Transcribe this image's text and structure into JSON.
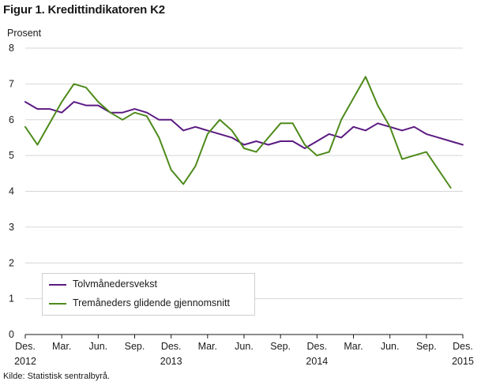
{
  "title": "Figur 1. Kredittindikatoren K2",
  "source": "Kilde: Statistisk sentralbyrå.",
  "chart_data": {
    "type": "line",
    "ylabel": "Prosent",
    "ylim": [
      0,
      8
    ],
    "yticks": [
      0,
      1,
      2,
      3,
      4,
      5,
      6,
      7,
      8
    ],
    "x_start": "2012-12",
    "x_end": "2015-12",
    "xtick_labels": [
      {
        "month": "Des.",
        "year": "2012"
      },
      {
        "month": "Mar.",
        "year": ""
      },
      {
        "month": "Jun.",
        "year": ""
      },
      {
        "month": "Sep.",
        "year": ""
      },
      {
        "month": "Des.",
        "year": "2013"
      },
      {
        "month": "Mar.",
        "year": ""
      },
      {
        "month": "Jun.",
        "year": ""
      },
      {
        "month": "Sep.",
        "year": ""
      },
      {
        "month": "Des.",
        "year": "2014"
      },
      {
        "month": "Mar.",
        "year": ""
      },
      {
        "month": "Jun.",
        "year": ""
      },
      {
        "month": "Sep.",
        "year": ""
      },
      {
        "month": "Des.",
        "year": "2015"
      }
    ],
    "grid": "horizontal",
    "legend_position": "bottom-left",
    "series": [
      {
        "name": "Tolvmånedersvekst",
        "color": "#5b1a82",
        "x": [
          "2012-12",
          "2013-01",
          "2013-02",
          "2013-03",
          "2013-04",
          "2013-05",
          "2013-06",
          "2013-07",
          "2013-08",
          "2013-09",
          "2013-10",
          "2013-11",
          "2013-12",
          "2014-01",
          "2014-02",
          "2014-03",
          "2014-04",
          "2014-05",
          "2014-06",
          "2014-07",
          "2014-08",
          "2014-09",
          "2014-10",
          "2014-11",
          "2014-12",
          "2015-01",
          "2015-02",
          "2015-03",
          "2015-04",
          "2015-05",
          "2015-06",
          "2015-07",
          "2015-08",
          "2015-09",
          "2015-10",
          "2015-11",
          "2015-12"
        ],
        "values": [
          6.5,
          6.3,
          6.3,
          6.2,
          6.5,
          6.4,
          6.4,
          6.2,
          6.2,
          6.3,
          6.2,
          6.0,
          6.0,
          5.7,
          5.8,
          5.7,
          5.6,
          5.5,
          5.3,
          5.4,
          5.3,
          5.4,
          5.4,
          5.2,
          5.4,
          5.6,
          5.5,
          5.8,
          5.7,
          5.9,
          5.8,
          5.7,
          5.8,
          5.6,
          5.5,
          5.4,
          5.3
        ]
      },
      {
        "name": "Tremåneders glidende gjennomsnitt",
        "color": "#4d8a1a",
        "x": [
          "2012-12",
          "2013-01",
          "2013-02",
          "2013-03",
          "2013-04",
          "2013-05",
          "2013-06",
          "2013-07",
          "2013-08",
          "2013-09",
          "2013-10",
          "2013-11",
          "2013-12",
          "2014-01",
          "2014-02",
          "2014-03",
          "2014-04",
          "2014-05",
          "2014-06",
          "2014-07",
          "2014-08",
          "2014-09",
          "2014-10",
          "2014-11",
          "2014-12",
          "2015-01",
          "2015-02",
          "2015-03",
          "2015-04",
          "2015-05",
          "2015-06",
          "2015-07",
          "2015-08",
          "2015-09",
          "2015-10",
          "2015-11"
        ],
        "values": [
          5.8,
          5.3,
          5.9,
          6.5,
          7.0,
          6.9,
          6.5,
          6.2,
          6.0,
          6.2,
          6.1,
          5.5,
          4.6,
          4.2,
          4.7,
          5.6,
          6.0,
          5.7,
          5.2,
          5.1,
          5.5,
          5.9,
          5.9,
          5.3,
          5.0,
          5.1,
          6.0,
          6.6,
          7.2,
          6.4,
          5.8,
          4.9,
          5.0,
          5.1,
          4.6,
          4.1
        ]
      }
    ]
  }
}
